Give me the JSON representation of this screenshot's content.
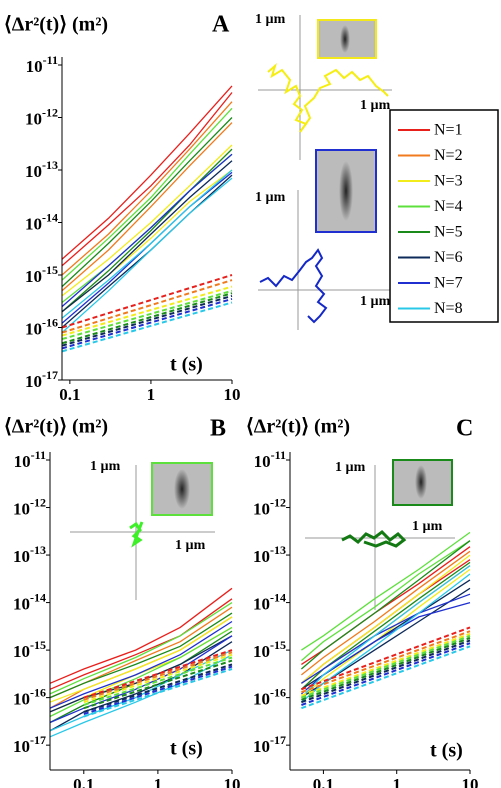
{
  "chart_data": [
    {
      "type": "line",
      "panel": "A",
      "title": "⟨Δr²(t)⟩ (m²)",
      "xlabel": "t (s)",
      "xlog": true,
      "ylog": true,
      "xlim": [
        0.08,
        10
      ],
      "ylim": [
        1e-17,
        1e-11
      ],
      "xticks": [
        0.1,
        1,
        10
      ],
      "yticks": [
        {
          "value": 1e-11,
          "label": "10-11"
        },
        {
          "value": 1e-12,
          "label": "10-12"
        },
        {
          "value": 1e-13,
          "label": "10-13"
        },
        {
          "value": 1e-14,
          "label": "10-14"
        },
        {
          "value": 1e-15,
          "label": "10-15"
        },
        {
          "value": 1e-16,
          "label": "10-16"
        },
        {
          "value": 1e-17,
          "label": "10-17"
        }
      ],
      "annotations": [
        "1 µm",
        "1 µm",
        "1 µm",
        "1 µm"
      ],
      "x": [
        0.08,
        0.3,
        1,
        3,
        10
      ],
      "series": [
        {
          "color": "#e8201c",
          "values": [
            2e-15,
            1.2e-14,
            8e-14,
            5e-13,
            4e-12
          ]
        },
        {
          "color": "#e8201c",
          "values": [
            1.5e-15,
            9e-15,
            5e-14,
            3e-13,
            3e-12
          ]
        },
        {
          "color": "#f07a1e",
          "values": [
            1e-15,
            6e-15,
            4e-14,
            2.5e-13,
            2e-12
          ]
        },
        {
          "color": "#f07a1e",
          "values": [
            5e-16,
            3e-15,
            2e-14,
            1.2e-13,
            8e-13
          ]
        },
        {
          "color": "#f2ec1c",
          "values": [
            4e-16,
            2e-15,
            1e-14,
            5e-14,
            3e-13
          ]
        },
        {
          "color": "#f2ec1c",
          "values": [
            2e-16,
            1e-15,
            5e-15,
            2.5e-14,
            1e-13
          ]
        },
        {
          "color": "#5ee03c",
          "values": [
            8e-16,
            5e-15,
            3e-14,
            2e-13,
            1.5e-12
          ]
        },
        {
          "color": "#5ee03c",
          "values": [
            3e-16,
            1.5e-15,
            8e-15,
            4e-14,
            2e-13
          ]
        },
        {
          "color": "#1a8a1a",
          "values": [
            6e-16,
            4e-15,
            2.5e-14,
            1.5e-13,
            1e-12
          ]
        },
        {
          "color": "#1a8a1a",
          "values": [
            2e-16,
            1.2e-15,
            7e-15,
            4e-14,
            2.5e-13
          ]
        },
        {
          "color": "#0d2a5a",
          "values": [
            2e-16,
            1e-15,
            6e-15,
            3e-14,
            1.5e-13
          ]
        },
        {
          "color": "#0d2a5a",
          "values": [
            1e-16,
            6e-16,
            3e-15,
            1.5e-14,
            8e-14
          ]
        },
        {
          "color": "#2030d0",
          "values": [
            2.5e-16,
            1.5e-15,
            8e-15,
            4e-14,
            2e-13
          ]
        },
        {
          "color": "#2030d0",
          "values": [
            1.2e-16,
            7e-16,
            4e-15,
            2e-14,
            9e-14
          ]
        },
        {
          "color": "#28c8e8",
          "values": [
            1.5e-16,
            8e-16,
            4e-15,
            2e-14,
            1e-13
          ]
        },
        {
          "color": "#28c8e8",
          "values": [
            8e-17,
            5e-16,
            3e-15,
            1.5e-14,
            7e-14
          ]
        },
        {
          "color": "#e8201c",
          "dashed": true,
          "x": [
            0.08,
            10
          ],
          "values": [
            1e-16,
            1e-15
          ]
        },
        {
          "color": "#f07a1e",
          "dashed": true,
          "x": [
            0.08,
            10
          ],
          "values": [
            8e-17,
            8e-16
          ]
        },
        {
          "color": "#f2ec1c",
          "dashed": true,
          "x": [
            0.08,
            10
          ],
          "values": [
            7e-17,
            6e-16
          ]
        },
        {
          "color": "#5ee03c",
          "dashed": true,
          "x": [
            0.08,
            10
          ],
          "values": [
            6e-17,
            5e-16
          ]
        },
        {
          "color": "#1a8a1a",
          "dashed": true,
          "x": [
            0.08,
            10
          ],
          "values": [
            5e-17,
            4.5e-16
          ]
        },
        {
          "color": "#0d2a5a",
          "dashed": true,
          "x": [
            0.08,
            10
          ],
          "values": [
            4.5e-17,
            4e-16
          ]
        },
        {
          "color": "#2030d0",
          "dashed": true,
          "x": [
            0.08,
            10
          ],
          "values": [
            4e-17,
            3.5e-16
          ]
        },
        {
          "color": "#28c8e8",
          "dashed": true,
          "x": [
            0.08,
            10
          ],
          "values": [
            3.5e-17,
            3e-16
          ]
        }
      ]
    },
    {
      "type": "line",
      "panel": "B",
      "title": "⟨Δr²(t)⟩ (m²)",
      "xlabel": "t (s)",
      "xlog": true,
      "ylog": true,
      "xlim": [
        0.035,
        10
      ],
      "ylim": [
        3e-18,
        1e-11
      ],
      "xticks": [
        0.1,
        1,
        10
      ],
      "yticks": [
        {
          "value": 1e-11,
          "label": "10-11"
        },
        {
          "value": 1e-12,
          "label": "10-12"
        },
        {
          "value": 1e-13,
          "label": "10-13"
        },
        {
          "value": 1e-14,
          "label": "10-14"
        },
        {
          "value": 1e-15,
          "label": "10-15"
        },
        {
          "value": 1e-16,
          "label": "10-16"
        },
        {
          "value": 1e-17,
          "label": "10-17"
        }
      ],
      "annotations": [
        "1 µm",
        "1 µm"
      ],
      "x": [
        0.035,
        0.1,
        0.5,
        2,
        10
      ],
      "series": [
        {
          "color": "#e8201c",
          "values": [
            2e-16,
            4e-16,
            1e-15,
            3e-15,
            2e-14
          ]
        },
        {
          "color": "#e8201c",
          "values": [
            1.5e-16,
            3e-16,
            8e-16,
            2e-15,
            1.2e-14
          ]
        },
        {
          "color": "#f07a1e",
          "values": [
            1e-16,
            2e-16,
            6e-16,
            1.5e-15,
            8e-15
          ]
        },
        {
          "color": "#f07a1e",
          "values": [
            6e-17,
            1.5e-16,
            4e-16,
            1e-15,
            5e-15
          ]
        },
        {
          "color": "#f2ec1c",
          "values": [
            8e-17,
            1.5e-16,
            4e-16,
            1e-15,
            5e-15
          ]
        },
        {
          "color": "#f2ec1c",
          "values": [
            5e-17,
            1e-16,
            3e-16,
            7e-16,
            3e-15
          ]
        },
        {
          "color": "#5ee03c",
          "values": [
            1.2e-16,
            2.5e-16,
            7e-16,
            2e-15,
            1e-14
          ]
        },
        {
          "color": "#5ee03c",
          "values": [
            4e-17,
            9e-17,
            2.5e-16,
            7e-16,
            3e-15
          ]
        },
        {
          "color": "#1a8a1a",
          "values": [
            1e-16,
            2e-16,
            5e-16,
            1.2e-15,
            6e-15
          ]
        },
        {
          "color": "#1a8a1a",
          "values": [
            3e-17,
            7e-17,
            2e-16,
            5e-16,
            2.5e-15
          ]
        },
        {
          "color": "#0d2a5a",
          "values": [
            5e-17,
            1e-16,
            2e-16,
            5e-16,
            2e-15
          ]
        },
        {
          "color": "#0d2a5a",
          "values": [
            2e-17,
            5e-17,
            1.2e-16,
            3e-16,
            1.5e-15
          ]
        },
        {
          "color": "#2030d0",
          "values": [
            6e-17,
            1.2e-16,
            3e-16,
            8e-16,
            4e-15
          ]
        },
        {
          "color": "#2030d0",
          "values": [
            3e-17,
            6e-17,
            1.5e-16,
            4e-16,
            2e-15
          ]
        },
        {
          "color": "#28c8e8",
          "values": [
            2e-17,
            4e-17,
            1e-16,
            3e-16,
            1e-15
          ]
        },
        {
          "color": "#28c8e8",
          "values": [
            1.5e-17,
            3e-17,
            8e-17,
            2e-16,
            8e-16
          ]
        },
        {
          "color": "#e8201c",
          "dashed": true,
          "x": [
            0.1,
            10
          ],
          "values": [
            1e-16,
            1e-15
          ]
        },
        {
          "color": "#f07a1e",
          "dashed": true,
          "x": [
            0.1,
            10
          ],
          "values": [
            9e-17,
            9e-16
          ]
        },
        {
          "color": "#f2ec1c",
          "dashed": true,
          "x": [
            0.1,
            10
          ],
          "values": [
            8e-17,
            8e-16
          ]
        },
        {
          "color": "#5ee03c",
          "dashed": true,
          "x": [
            0.1,
            10
          ],
          "values": [
            7e-17,
            7e-16
          ]
        },
        {
          "color": "#1a8a1a",
          "dashed": true,
          "x": [
            0.1,
            10
          ],
          "values": [
            6e-17,
            6e-16
          ]
        },
        {
          "color": "#0d2a5a",
          "dashed": true,
          "x": [
            0.1,
            10
          ],
          "values": [
            5e-17,
            5e-16
          ]
        },
        {
          "color": "#2030d0",
          "dashed": true,
          "x": [
            0.1,
            10
          ],
          "values": [
            4.5e-17,
            4.5e-16
          ]
        },
        {
          "color": "#28c8e8",
          "dashed": true,
          "x": [
            0.1,
            10
          ],
          "values": [
            4e-17,
            4e-16
          ]
        }
      ]
    },
    {
      "type": "line",
      "panel": "C",
      "title": "⟨Δr²(t)⟩ (m²)",
      "xlabel": "t (s)",
      "xlog": true,
      "ylog": true,
      "xlim": [
        0.035,
        10
      ],
      "ylim": [
        3e-18,
        1e-11
      ],
      "xticks": [
        0.1,
        1,
        10
      ],
      "yticks": [
        {
          "value": 1e-11,
          "label": "10-11"
        },
        {
          "value": 1e-12,
          "label": "10-12"
        },
        {
          "value": 1e-13,
          "label": "10-13"
        },
        {
          "value": 1e-14,
          "label": "10-14"
        },
        {
          "value": 1e-15,
          "label": "10-15"
        },
        {
          "value": 1e-16,
          "label": "10-16"
        },
        {
          "value": 1e-17,
          "label": "10-17"
        }
      ],
      "annotations": [
        "1 µm",
        "1 µm"
      ],
      "x": [
        0.05,
        0.1,
        0.5,
        2,
        10
      ],
      "series": [
        {
          "color": "#e8201c",
          "values": [
            5e-16,
            1e-15,
            6e-15,
            2.5e-14,
            1.5e-13
          ]
        },
        {
          "color": "#e8201c",
          "values": [
            2e-16,
            5e-16,
            3e-15,
            1.5e-14,
            8e-14
          ]
        },
        {
          "color": "#f07a1e",
          "values": [
            3e-16,
            7e-16,
            4e-15,
            2e-14,
            1.2e-13
          ]
        },
        {
          "color": "#f07a1e",
          "values": [
            1.5e-16,
            4e-16,
            2e-15,
            1e-14,
            6e-14
          ]
        },
        {
          "color": "#f2ec1c",
          "values": [
            2e-16,
            5e-16,
            3e-15,
            1.5e-14,
            1e-13
          ]
        },
        {
          "color": "#f2ec1c",
          "values": [
            1e-16,
            2.5e-16,
            1.5e-15,
            8e-15,
            5e-14
          ]
        },
        {
          "color": "#5ee03c",
          "values": [
            1e-15,
            2e-15,
            1.2e-14,
            5e-14,
            3e-13
          ]
        },
        {
          "color": "#5ee03c",
          "values": [
            6e-16,
            1.5e-15,
            8e-15,
            4e-14,
            2e-13
          ]
        },
        {
          "color": "#1a8a1a",
          "values": [
            4e-16,
            1e-15,
            6e-15,
            3e-14,
            2e-13
          ]
        },
        {
          "color": "#1a8a1a",
          "values": [
            1.5e-16,
            4e-16,
            2.5e-15,
            1.2e-14,
            7e-14
          ]
        },
        {
          "color": "#0d2a5a",
          "values": [
            1.5e-16,
            3e-16,
            1.5e-15,
            6e-15,
            3e-14
          ]
        },
        {
          "color": "#0d2a5a",
          "values": [
            1e-16,
            2e-16,
            1e-15,
            4e-15,
            2e-14
          ]
        },
        {
          "color": "#2030d0",
          "values": [
            2e-16,
            4e-16,
            2e-15,
            6e-15,
            1.5e-14
          ]
        },
        {
          "color": "#2030d0",
          "values": [
            1.2e-16,
            3e-16,
            1.5e-15,
            5e-15,
            1e-14
          ]
        },
        {
          "color": "#28c8e8",
          "values": [
            1e-16,
            3e-16,
            2e-15,
            1e-14,
            6e-14
          ]
        },
        {
          "color": "#28c8e8",
          "values": [
            8e-17,
            2e-16,
            1.2e-15,
            6e-15,
            4e-14
          ]
        },
        {
          "color": "#e8201c",
          "dashed": true,
          "x": [
            0.05,
            10
          ],
          "values": [
            1.5e-16,
            3e-15
          ]
        },
        {
          "color": "#f07a1e",
          "dashed": true,
          "x": [
            0.05,
            10
          ],
          "values": [
            1.3e-16,
            2.5e-15
          ]
        },
        {
          "color": "#f2ec1c",
          "dashed": true,
          "x": [
            0.05,
            10
          ],
          "values": [
            1.1e-16,
            2.2e-15
          ]
        },
        {
          "color": "#5ee03c",
          "dashed": true,
          "x": [
            0.05,
            10
          ],
          "values": [
            1e-16,
            2e-15
          ]
        },
        {
          "color": "#1a8a1a",
          "dashed": true,
          "x": [
            0.05,
            10
          ],
          "values": [
            9e-17,
            1.8e-15
          ]
        },
        {
          "color": "#0d2a5a",
          "dashed": true,
          "x": [
            0.05,
            10
          ],
          "values": [
            8e-17,
            1.6e-15
          ]
        },
        {
          "color": "#2030d0",
          "dashed": true,
          "x": [
            0.05,
            10
          ],
          "values": [
            7e-17,
            1.4e-15
          ]
        },
        {
          "color": "#28c8e8",
          "dashed": true,
          "x": [
            0.05,
            10
          ],
          "values": [
            6e-17,
            1.2e-15
          ]
        }
      ]
    }
  ],
  "legend": [
    {
      "name": "N=1",
      "color": "#e8201c"
    },
    {
      "name": "N=2",
      "color": "#f07a1e"
    },
    {
      "name": "N=3",
      "color": "#f2ec1c"
    },
    {
      "name": "N=4",
      "color": "#5ee03c"
    },
    {
      "name": "N=5",
      "color": "#1a8a1a"
    },
    {
      "name": "N=6",
      "color": "#0d2a5a"
    },
    {
      "name": "N=7",
      "color": "#2030d0"
    },
    {
      "name": "N=8",
      "color": "#28c8e8"
    }
  ]
}
